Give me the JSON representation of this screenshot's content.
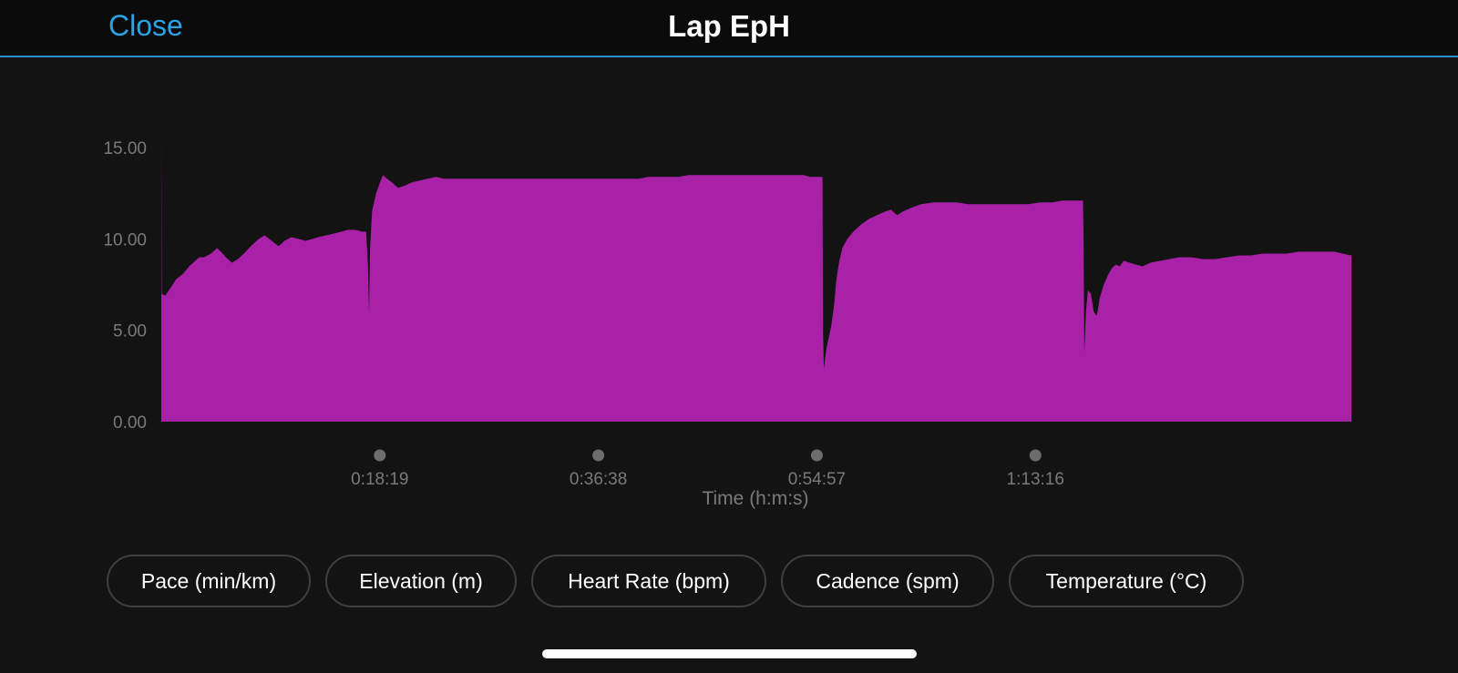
{
  "header": {
    "close_label": "Close",
    "title": "Lap EpH",
    "accent_color": "#2aa3e6"
  },
  "chart_data": {
    "type": "area",
    "title": "",
    "xlabel": "Time (h:m:s)",
    "ylabel": "",
    "ylim": [
      0,
      16.8
    ],
    "xlim_seconds": [
      0,
      5985
    ],
    "y_ticks": [
      "0.00",
      "5.00",
      "10.00",
      "15.00"
    ],
    "x_ticks": [
      {
        "label": "0:18:19",
        "seconds": 1099
      },
      {
        "label": "0:36:38",
        "seconds": 2198
      },
      {
        "label": "0:54:57",
        "seconds": 3297
      },
      {
        "label": "1:13:16",
        "seconds": 4396
      }
    ],
    "fill_color": "#a821a6",
    "series": [
      {
        "name": "",
        "points": [
          [
            0,
            0.0
          ],
          [
            0,
            16.5
          ],
          [
            2,
            7.0
          ],
          [
            20,
            6.9
          ],
          [
            45,
            7.3
          ],
          [
            75,
            7.8
          ],
          [
            110,
            8.1
          ],
          [
            140,
            8.5
          ],
          [
            170,
            8.8
          ],
          [
            190,
            9.0
          ],
          [
            215,
            9.0
          ],
          [
            250,
            9.2
          ],
          [
            280,
            9.5
          ],
          [
            300,
            9.3
          ],
          [
            325,
            9.0
          ],
          [
            355,
            8.7
          ],
          [
            385,
            8.9
          ],
          [
            415,
            9.2
          ],
          [
            450,
            9.6
          ],
          [
            490,
            10.0
          ],
          [
            520,
            10.2
          ],
          [
            555,
            9.9
          ],
          [
            590,
            9.6
          ],
          [
            620,
            9.9
          ],
          [
            655,
            10.1
          ],
          [
            690,
            10.0
          ],
          [
            725,
            9.9
          ],
          [
            760,
            10.0
          ],
          [
            790,
            10.1
          ],
          [
            830,
            10.2
          ],
          [
            870,
            10.3
          ],
          [
            905,
            10.4
          ],
          [
            940,
            10.5
          ],
          [
            975,
            10.5
          ],
          [
            1010,
            10.4
          ],
          [
            1030,
            10.4
          ],
          [
            1040,
            8.5
          ],
          [
            1045,
            5.9
          ],
          [
            1050,
            9.5
          ],
          [
            1060,
            11.5
          ],
          [
            1080,
            12.5
          ],
          [
            1100,
            13.1
          ],
          [
            1115,
            13.5
          ],
          [
            1135,
            13.3
          ],
          [
            1160,
            13.1
          ],
          [
            1190,
            12.8
          ],
          [
            1220,
            12.9
          ],
          [
            1260,
            13.1
          ],
          [
            1300,
            13.2
          ],
          [
            1340,
            13.3
          ],
          [
            1380,
            13.4
          ],
          [
            1420,
            13.3
          ],
          [
            1460,
            13.3
          ],
          [
            1500,
            13.3
          ],
          [
            1560,
            13.3
          ],
          [
            1620,
            13.3
          ],
          [
            1680,
            13.3
          ],
          [
            1740,
            13.3
          ],
          [
            1800,
            13.3
          ],
          [
            1860,
            13.3
          ],
          [
            1920,
            13.3
          ],
          [
            1980,
            13.3
          ],
          [
            2040,
            13.3
          ],
          [
            2100,
            13.3
          ],
          [
            2160,
            13.3
          ],
          [
            2220,
            13.3
          ],
          [
            2280,
            13.3
          ],
          [
            2340,
            13.3
          ],
          [
            2400,
            13.3
          ],
          [
            2450,
            13.4
          ],
          [
            2500,
            13.4
          ],
          [
            2550,
            13.4
          ],
          [
            2600,
            13.4
          ],
          [
            2650,
            13.5
          ],
          [
            2700,
            13.5
          ],
          [
            2760,
            13.5
          ],
          [
            2820,
            13.5
          ],
          [
            2880,
            13.5
          ],
          [
            2940,
            13.5
          ],
          [
            3000,
            13.5
          ],
          [
            3060,
            13.5
          ],
          [
            3120,
            13.5
          ],
          [
            3180,
            13.5
          ],
          [
            3230,
            13.5
          ],
          [
            3265,
            13.4
          ],
          [
            3325,
            13.4
          ],
          [
            3328,
            5.0
          ],
          [
            3332,
            2.9
          ],
          [
            3345,
            4.0
          ],
          [
            3370,
            5.3
          ],
          [
            3385,
            6.5
          ],
          [
            3395,
            7.8
          ],
          [
            3410,
            8.8
          ],
          [
            3425,
            9.5
          ],
          [
            3450,
            10.0
          ],
          [
            3480,
            10.4
          ],
          [
            3520,
            10.8
          ],
          [
            3560,
            11.1
          ],
          [
            3600,
            11.3
          ],
          [
            3640,
            11.5
          ],
          [
            3670,
            11.6
          ],
          [
            3700,
            11.3
          ],
          [
            3730,
            11.5
          ],
          [
            3770,
            11.7
          ],
          [
            3820,
            11.9
          ],
          [
            3880,
            12.0
          ],
          [
            3940,
            12.0
          ],
          [
            4000,
            12.0
          ],
          [
            4060,
            11.9
          ],
          [
            4120,
            11.9
          ],
          [
            4180,
            11.9
          ],
          [
            4240,
            11.9
          ],
          [
            4300,
            11.9
          ],
          [
            4360,
            11.9
          ],
          [
            4420,
            12.0
          ],
          [
            4480,
            12.0
          ],
          [
            4530,
            12.1
          ],
          [
            4580,
            12.1
          ],
          [
            4635,
            12.1
          ],
          [
            4638,
            10.0
          ],
          [
            4642,
            3.8
          ],
          [
            4650,
            6.0
          ],
          [
            4660,
            7.2
          ],
          [
            4675,
            7.0
          ],
          [
            4690,
            6.0
          ],
          [
            4705,
            5.8
          ],
          [
            4720,
            6.8
          ],
          [
            4740,
            7.5
          ],
          [
            4760,
            8.0
          ],
          [
            4780,
            8.4
          ],
          [
            4800,
            8.6
          ],
          [
            4820,
            8.5
          ],
          [
            4840,
            8.8
          ],
          [
            4870,
            8.7
          ],
          [
            4900,
            8.6
          ],
          [
            4935,
            8.5
          ],
          [
            4975,
            8.7
          ],
          [
            5020,
            8.8
          ],
          [
            5070,
            8.9
          ],
          [
            5120,
            9.0
          ],
          [
            5180,
            9.0
          ],
          [
            5240,
            8.9
          ],
          [
            5300,
            8.9
          ],
          [
            5360,
            9.0
          ],
          [
            5420,
            9.1
          ],
          [
            5480,
            9.1
          ],
          [
            5540,
            9.2
          ],
          [
            5600,
            9.2
          ],
          [
            5660,
            9.2
          ],
          [
            5720,
            9.3
          ],
          [
            5780,
            9.3
          ],
          [
            5840,
            9.3
          ],
          [
            5900,
            9.3
          ],
          [
            5940,
            9.2
          ],
          [
            5985,
            9.1
          ],
          [
            5985,
            0.0
          ]
        ]
      }
    ]
  },
  "metrics": [
    {
      "label": "Pace (min/km)"
    },
    {
      "label": "Elevation (m)"
    },
    {
      "label": "Heart Rate (bpm)"
    },
    {
      "label": "Cadence (spm)"
    },
    {
      "label": "Temperature (°C)"
    }
  ]
}
